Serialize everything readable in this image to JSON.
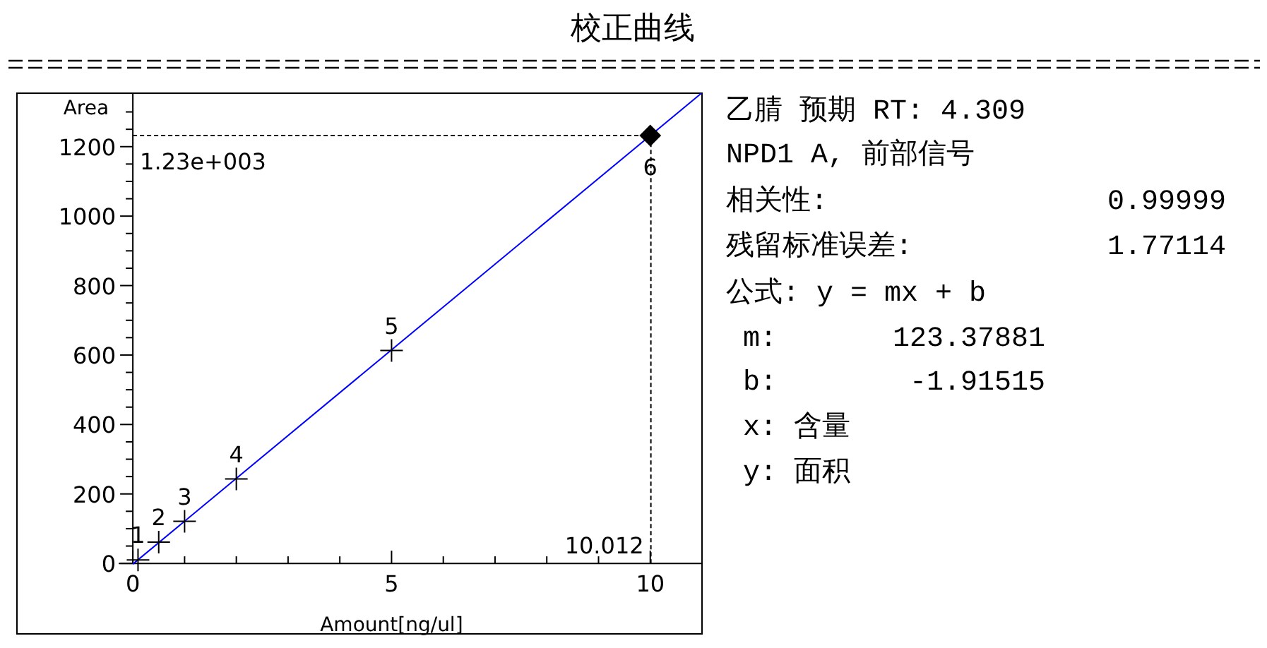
{
  "chart_data": [
    {
      "type": "scatter",
      "title": "校正曲线",
      "xlabel": "Amount[ng/ul]",
      "ylabel": "Area",
      "xlim": [
        -2.24,
        11.0
      ],
      "ylim": [
        -203,
        1354
      ],
      "xticks": [
        0,
        {
          "value": 1,
          "label": null
        },
        {
          "value": 2,
          "label": null
        },
        {
          "value": 3,
          "label": null
        },
        {
          "value": 4,
          "label": null
        },
        5,
        {
          "value": 6,
          "label": null
        },
        {
          "value": 7,
          "label": null
        },
        {
          "value": 8,
          "label": null
        },
        {
          "value": 9,
          "label": null
        },
        10,
        {
          "value": 11,
          "label": null
        }
      ],
      "yticks": [
        0,
        {
          "value": 50,
          "label": null
        },
        {
          "value": 100,
          "label": null
        },
        {
          "value": 150,
          "label": null
        },
        200,
        {
          "value": 250,
          "label": null
        },
        {
          "value": 300,
          "label": null
        },
        {
          "value": 350,
          "label": null
        },
        400,
        {
          "value": 450,
          "label": null
        },
        {
          "value": 500,
          "label": null
        },
        {
          "value": 550,
          "label": null
        },
        600,
        {
          "value": 650,
          "label": null
        },
        {
          "value": 700,
          "label": null
        },
        {
          "value": 750,
          "label": null
        },
        800,
        {
          "value": 850,
          "label": null
        },
        {
          "value": 900,
          "label": null
        },
        {
          "value": 950,
          "label": null
        },
        1000,
        {
          "value": 1050,
          "label": null
        },
        {
          "value": 1100,
          "label": null
        },
        {
          "value": 1150,
          "label": null
        },
        1200,
        {
          "value": 1250,
          "label": null
        },
        {
          "value": 1300,
          "label": null
        }
      ],
      "series": [
        {
          "type": "line",
          "color": "#0000ff",
          "x": [
            0,
            10.99
          ],
          "values": [
            -2,
            1354
          ]
        },
        {
          "type": "scatter",
          "marker": "cross",
          "color": "#000000",
          "x": [
            0.1,
            0.5,
            1,
            2,
            5
          ],
          "values": [
            10,
            61,
            121,
            243,
            613
          ]
        },
        {
          "type": "scatter",
          "marker": "diamond",
          "color": "#000000",
          "x": [
            10
          ],
          "values": [
            1232
          ]
        }
      ],
      "ref_lines": [
        {
          "axis": "y",
          "value": 1232,
          "label": "1.23e+003",
          "line_style": "dashed",
          "color": "#000000"
        },
        {
          "axis": "x",
          "value": 10.012,
          "label": "10.012",
          "line_style": "dashed",
          "color": "#000000"
        }
      ],
      "annotations": [
        {
          "text": "1",
          "x": 0.1,
          "y": 10
        },
        {
          "text": "2",
          "x": 0.5,
          "y": 61
        },
        {
          "text": "3",
          "x": 1,
          "y": 121
        },
        {
          "text": "4",
          "x": 2,
          "y": 243
        },
        {
          "text": "5",
          "x": 5,
          "y": 613
        },
        {
          "text": "6",
          "x": 10,
          "y": 1232
        }
      ]
    },
    {
      "type": "other",
      "annotations": [
        "乙腈 预期 RT: 4.309",
        "NPD1 A, 前部信号",
        "相关性:",
        "0.99999",
        "残留标准误差:",
        "1.77114",
        "公式: y = mx + b",
        "m:",
        "123.37881",
        "b:",
        "-1.91515",
        "x: 含量",
        "y: 面积"
      ]
    }
  ]
}
